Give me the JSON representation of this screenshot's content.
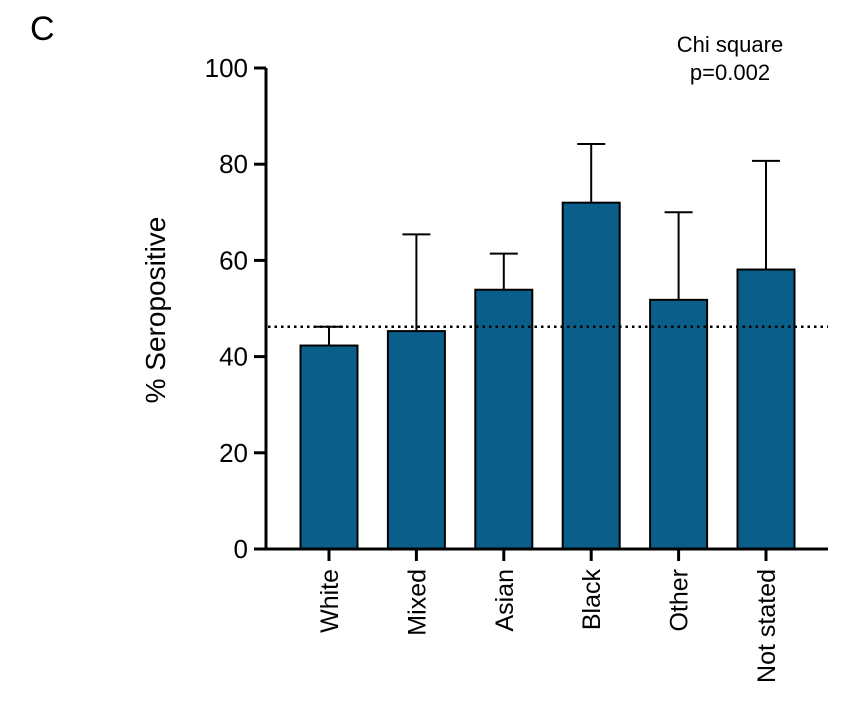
{
  "panel_label": "C",
  "chart_data": {
    "type": "bar",
    "categories": [
      "White",
      "Mixed",
      "Asian",
      "Black",
      "Other",
      "Not stated"
    ],
    "values": [
      42.3,
      45.3,
      53.9,
      72.0,
      51.8,
      58.1
    ],
    "error_upper": [
      46.2,
      65.4,
      61.4,
      84.2,
      70.0,
      80.7
    ],
    "reference_line": 46.2,
    "ylabel": "% Seropositive",
    "xlabel": "",
    "ylim": [
      0,
      100
    ],
    "yticks": [
      "0",
      "20",
      "40",
      "60",
      "80",
      "100"
    ],
    "annotation": [
      "Chi square",
      "p=0.002"
    ],
    "bar_color": "#0a5f8a",
    "grid": false,
    "legend": "none"
  }
}
